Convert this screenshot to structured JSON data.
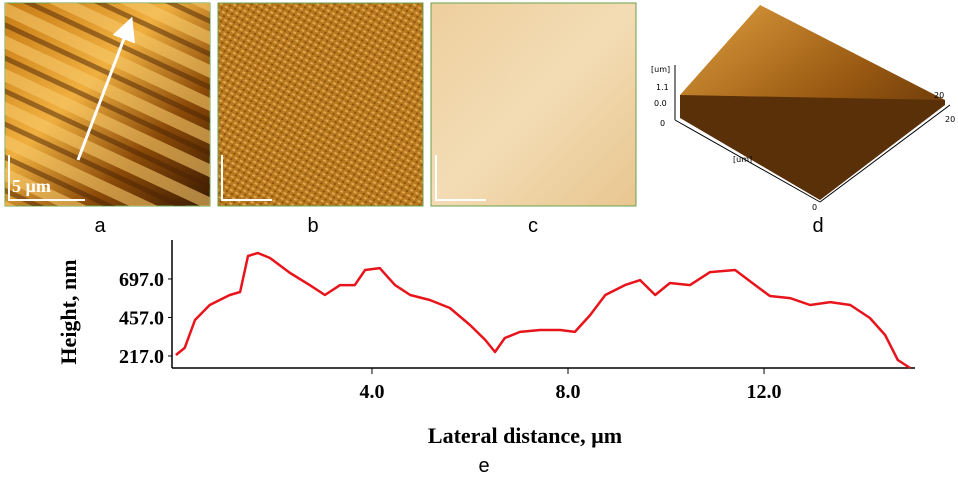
{
  "panels": {
    "labels": [
      "a",
      "b",
      "c",
      "d",
      "e"
    ],
    "scale_bar": "5 µm",
    "surface_axis_labels": [
      "[um]",
      "1.1",
      "0.0",
      "0",
      "[um]",
      "20",
      "0",
      "20"
    ]
  },
  "chart_data": {
    "type": "line",
    "x_label": "Lateral distance, µm",
    "y_label": "Height, nm",
    "x": [
      0,
      0.18,
      0.39,
      0.69,
      1.1,
      1.31,
      1.47,
      1.67,
      1.92,
      2.33,
      2.73,
      3.04,
      3.35,
      3.65,
      3.86,
      4.16,
      4.47,
      4.78,
      5.18,
      5.59,
      6.0,
      6.31,
      6.51,
      6.71,
      7.02,
      7.43,
      7.84,
      8.14,
      8.45,
      8.76,
      9.16,
      9.47,
      9.78,
      10.08,
      10.49,
      10.9,
      11.41,
      11.82,
      12.12,
      12.53,
      12.94,
      13.35,
      13.76,
      14.16,
      14.47,
      14.73,
      14.98
    ],
    "values": [
      223,
      267,
      441,
      535,
      597,
      616,
      840,
      859,
      828,
      734,
      659,
      597,
      659,
      659,
      753,
      765,
      659,
      597,
      566,
      516,
      410,
      317,
      242,
      329,
      367,
      379,
      379,
      367,
      472,
      597,
      659,
      690,
      597,
      672,
      659,
      740,
      753,
      659,
      591,
      578,
      535,
      553,
      535,
      454,
      348,
      192,
      142
    ],
    "color": "#e8141c",
    "xlim": [
      -0.08,
      15.08
    ],
    "ylim": [
      142,
      940
    ],
    "xticks": [
      {
        "value": 4,
        "label": "4.0"
      },
      {
        "value": 8,
        "label": "8.0"
      },
      {
        "value": 12,
        "label": "12.0"
      }
    ],
    "yticks": [
      {
        "value": 217,
        "label": "217.0"
      },
      {
        "value": 457,
        "label": "457.0"
      },
      {
        "value": 697,
        "label": "697.0"
      }
    ]
  }
}
